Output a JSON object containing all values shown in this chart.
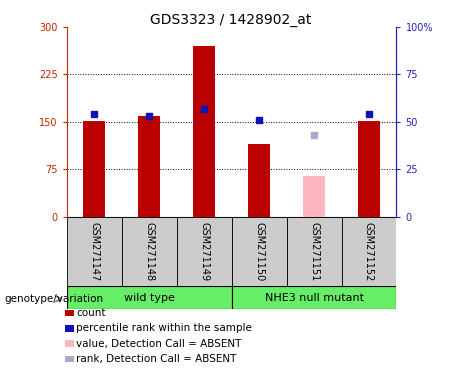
{
  "title": "GDS3323 / 1428902_at",
  "samples": [
    "GSM271147",
    "GSM271148",
    "GSM271149",
    "GSM271150",
    "GSM271151",
    "GSM271152"
  ],
  "count_values": [
    152,
    160,
    270,
    115,
    null,
    152
  ],
  "count_absent": [
    null,
    null,
    null,
    null,
    65,
    null
  ],
  "rank_values": [
    54,
    53,
    57,
    51,
    null,
    54
  ],
  "rank_absent": [
    null,
    null,
    null,
    null,
    43,
    null
  ],
  "left_ylim": [
    0,
    300
  ],
  "right_ylim": [
    0,
    100
  ],
  "left_yticks": [
    0,
    75,
    150,
    225,
    300
  ],
  "right_yticks": [
    0,
    25,
    50,
    75,
    100
  ],
  "left_yticklabels": [
    "0",
    "75",
    "150",
    "225",
    "300"
  ],
  "right_yticklabels": [
    "0",
    "25",
    "50",
    "75",
    "100%"
  ],
  "bar_color_red": "#BB0000",
  "bar_color_pink": "#FFB6C1",
  "dot_color_blue": "#1111BB",
  "dot_color_lightblue": "#AAAACC",
  "bg_color": "#CCCCCC",
  "green_color": "#66EE66",
  "left_axis_color": "#CC2200",
  "right_axis_color": "#2222CC",
  "title_fontsize": 10,
  "tick_fontsize": 7,
  "label_fontsize": 7.5,
  "group_fontsize": 8,
  "bar_width": 0.4,
  "wild_type_label": "wild type",
  "mutant_label": "NHE3 null mutant",
  "genotype_label": "genotype/variation",
  "legend_items": [
    {
      "label": "count",
      "color": "#BB0000"
    },
    {
      "label": "percentile rank within the sample",
      "color": "#1111BB"
    },
    {
      "label": "value, Detection Call = ABSENT",
      "color": "#FFB6C1"
    },
    {
      "label": "rank, Detection Call = ABSENT",
      "color": "#AAAACC"
    }
  ]
}
